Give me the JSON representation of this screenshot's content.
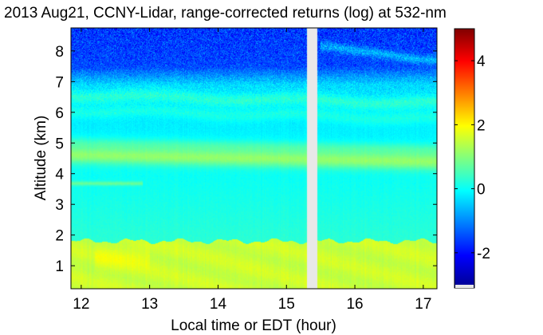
{
  "chart_data": {
    "type": "heatmap",
    "title": "2013 Aug21, CCNY-Lidar, range-corrected returns (log) at 532-nm",
    "xlabel": "Local time or EDT (hour)",
    "ylabel": "Altitude (km)",
    "xlim": [
      11.85,
      17.2
    ],
    "ylim": [
      0.25,
      8.75
    ],
    "xticks": [
      {
        "value": 12,
        "label": "12"
      },
      {
        "value": 13,
        "label": "13"
      },
      {
        "value": 14,
        "label": "14"
      },
      {
        "value": 15,
        "label": "15"
      },
      {
        "value": 16,
        "label": "16"
      },
      {
        "value": 17,
        "label": "17"
      }
    ],
    "yticks": [
      {
        "value": 1,
        "label": "1"
      },
      {
        "value": 2,
        "label": "2"
      },
      {
        "value": 3,
        "label": "3"
      },
      {
        "value": 4,
        "label": "4"
      },
      {
        "value": 5,
        "label": "5"
      },
      {
        "value": 6,
        "label": "6"
      },
      {
        "value": 7,
        "label": "7"
      },
      {
        "value": 8,
        "label": "8"
      }
    ],
    "data_gap_hours": [
      15.3,
      15.45
    ],
    "colorbar": {
      "colormap": "jet",
      "range": [
        -3.1,
        5.0
      ],
      "ticks": [
        {
          "value": -2,
          "label": "-2"
        },
        {
          "value": 0,
          "label": "0"
        },
        {
          "value": 2,
          "label": "2"
        },
        {
          "value": 4,
          "label": "4"
        }
      ]
    },
    "layers": [
      {
        "feature": "boundary layer",
        "altitude_km": [
          0.25,
          1.85
        ],
        "log_return": 1.6
      },
      {
        "feature": "aerosol layer",
        "altitude_km": [
          4.2,
          5.0
        ],
        "log_return": 1.3
      },
      {
        "feature": "thin layer",
        "altitude_km": [
          3.6,
          3.75
        ],
        "time_hours": [
          11.85,
          12.9
        ],
        "log_return": 1.0
      },
      {
        "feature": "upper layer",
        "altitude_km": [
          6.0,
          6.8
        ],
        "log_return": 0.7
      },
      {
        "feature": "rising layer",
        "altitude_km": [
          7.6,
          8.3
        ],
        "time_hours": [
          15.5,
          17.0
        ],
        "log_return": 0.7
      }
    ]
  }
}
